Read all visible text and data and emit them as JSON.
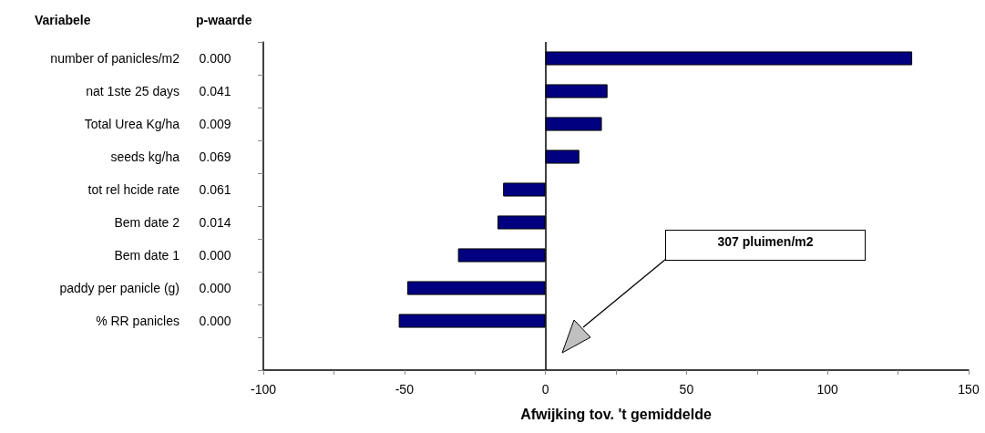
{
  "chart_data": {
    "type": "bar",
    "orientation": "horizontal",
    "xlabel": "Afwijking tov. 't gemiddelde",
    "categories": [
      "number of panicles/m2",
      "nat 1ste 25 days",
      "Total Urea Kg/ha",
      "seeds kg/ha",
      "tot rel hcide rate",
      "Bem date 2",
      "Bem date 1",
      "paddy per panicle (g)",
      "% RR panicles",
      null
    ],
    "values": [
      130,
      22,
      20,
      12,
      -15,
      -17,
      -31,
      -49,
      -52,
      null
    ],
    "color": "#000080",
    "xlim": [
      -100,
      150
    ],
    "xticks": [
      -100,
      {
        "value": -75,
        "label": null
      },
      -50,
      {
        "value": -25,
        "label": null
      },
      0,
      {
        "value": 25,
        "label": null
      },
      50,
      {
        "value": 75,
        "label": null
      },
      100,
      {
        "value": 125,
        "label": null
      },
      150
    ],
    "ref_lines": [
      {
        "axis": "x",
        "value": 0,
        "color": "#000000"
      }
    ],
    "annotations": [
      "Variabele",
      "p-waarde",
      "307 pluimen/m2",
      "0.000",
      "0.041",
      "0.009",
      "0.069",
      "0.061",
      "0.014",
      "0.000",
      "0.000",
      "0.000"
    ]
  }
}
